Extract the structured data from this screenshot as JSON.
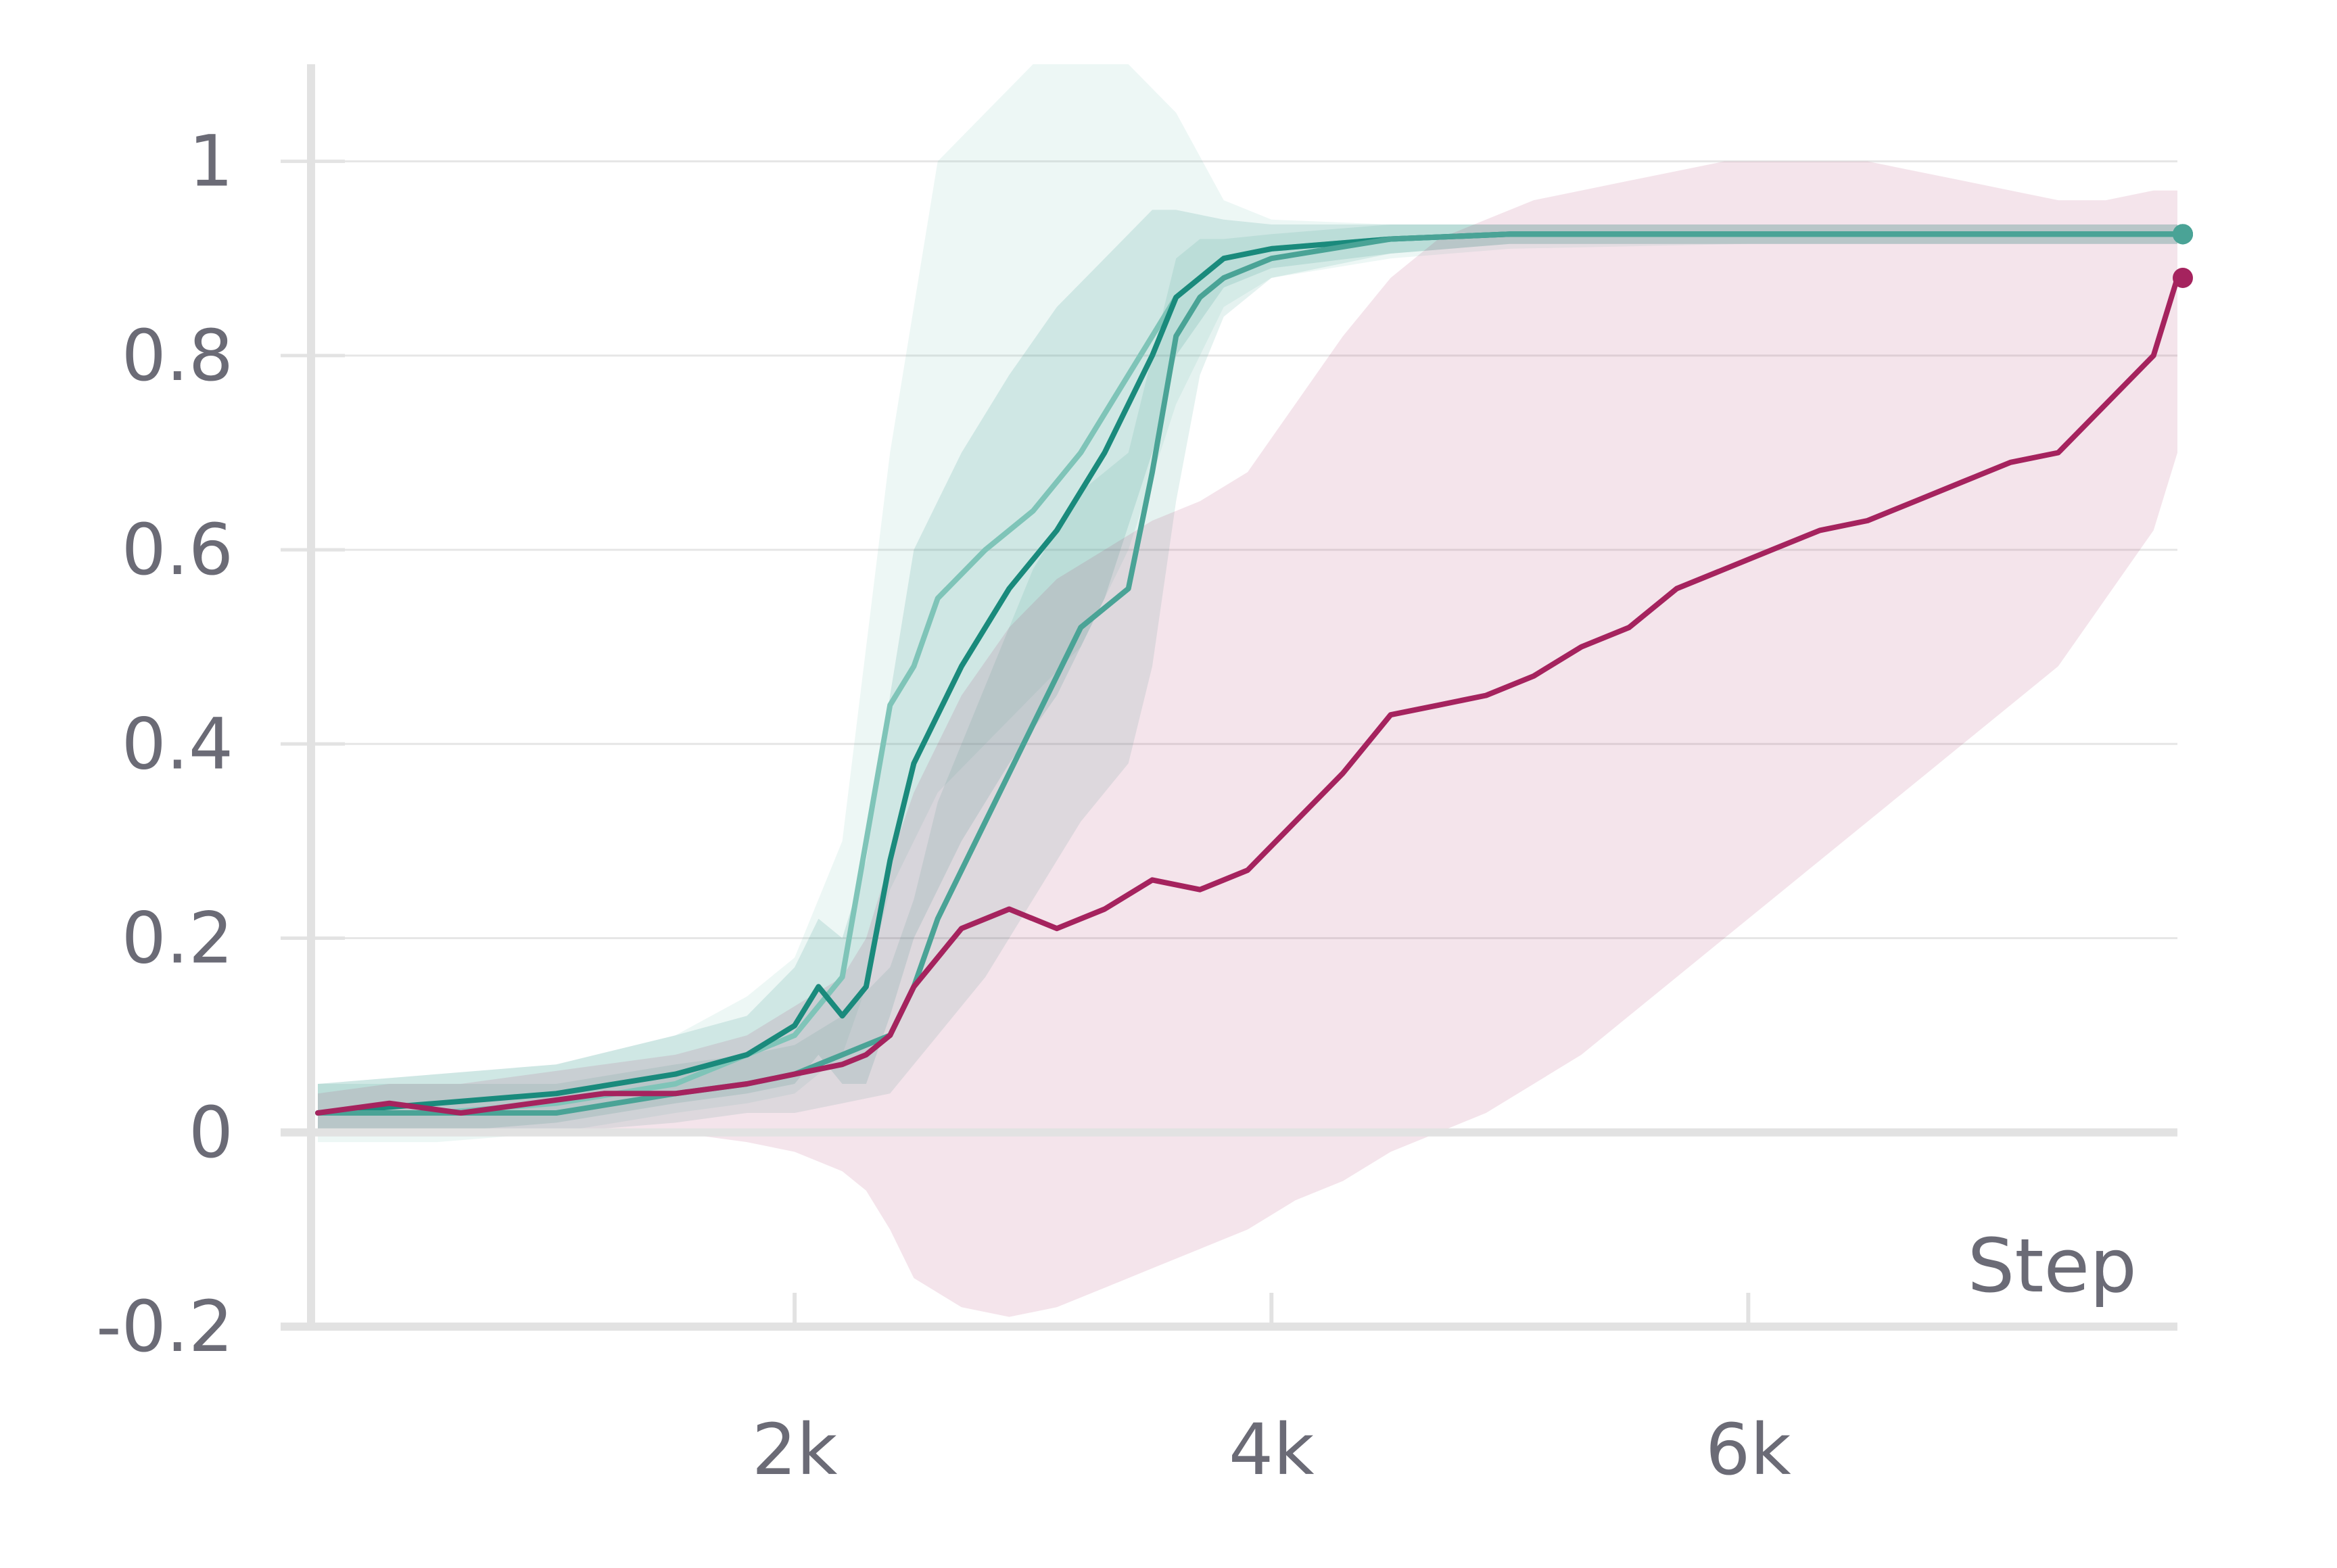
{
  "chart_data": {
    "type": "line",
    "title": "",
    "xlabel": "Step",
    "ylabel": "",
    "xlim": [
      0,
      7800
    ],
    "ylim": [
      -0.2,
      1.1
    ],
    "x_ticks": [
      {
        "value": 2000,
        "label": "2k"
      },
      {
        "value": 4000,
        "label": "4k"
      },
      {
        "value": 6000,
        "label": "6k"
      }
    ],
    "y_ticks": [
      {
        "value": -0.2,
        "label": "-0.2"
      },
      {
        "value": 0,
        "label": "0"
      },
      {
        "value": 0.2,
        "label": "0.2"
      },
      {
        "value": 0.4,
        "label": "0.4"
      },
      {
        "value": 0.6,
        "label": "0.6"
      },
      {
        "value": 0.8,
        "label": "0.8"
      },
      {
        "value": 1,
        "label": "1"
      }
    ],
    "grid": true,
    "legend": "none",
    "series": [
      {
        "color": "#7fc4b8",
        "x": [
          0,
          500,
          1000,
          1500,
          1800,
          2000,
          2200,
          2300,
          2400,
          2500,
          2600,
          2800,
          3000,
          3200,
          3400,
          3600,
          3800,
          4000,
          4500,
          5000,
          6000,
          7000,
          7800
        ],
        "y": [
          0.02,
          0.02,
          0.03,
          0.05,
          0.08,
          0.1,
          0.16,
          0.3,
          0.44,
          0.48,
          0.55,
          0.6,
          0.64,
          0.7,
          0.78,
          0.86,
          0.9,
          0.91,
          0.92,
          0.925,
          0.925,
          0.925,
          0.925
        ],
        "band": {
          "lower": [
            -0.01,
            -0.01,
            0,
            0.02,
            0.03,
            0.04,
            0.08,
            0.15,
            0.25,
            0.3,
            0.35,
            0.4,
            0.45,
            0.5,
            0.6,
            0.75,
            0.85,
            0.88,
            0.9,
            0.91,
            0.915,
            0.915,
            0.915
          ],
          "upper": [
            0.05,
            0.06,
            0.07,
            0.1,
            0.14,
            0.18,
            0.3,
            0.5,
            0.7,
            0.85,
            1.0,
            1.05,
            1.1,
            1.1,
            1.1,
            1.05,
            0.96,
            0.94,
            0.935,
            0.935,
            0.935,
            0.935,
            0.935
          ]
        }
      },
      {
        "color": "#1a8a7c",
        "x": [
          0,
          500,
          1000,
          1500,
          1800,
          2000,
          2100,
          2200,
          2300,
          2400,
          2500,
          2700,
          2900,
          3100,
          3300,
          3500,
          3600,
          3800,
          4000,
          4500,
          5000,
          6000,
          7000,
          7800
        ],
        "y": [
          0.02,
          0.03,
          0.04,
          0.06,
          0.08,
          0.11,
          0.15,
          0.12,
          0.15,
          0.28,
          0.38,
          0.48,
          0.56,
          0.62,
          0.7,
          0.8,
          0.86,
          0.9,
          0.91,
          0.92,
          0.925,
          0.925,
          0.925,
          0.925
        ],
        "band": {
          "lower": [
            0,
            0,
            0.01,
            0.03,
            0.04,
            0.05,
            0.08,
            0.05,
            0.05,
            0.12,
            0.2,
            0.3,
            0.38,
            0.45,
            0.55,
            0.7,
            0.8,
            0.87,
            0.89,
            0.905,
            0.915,
            0.915,
            0.915,
            0.915
          ],
          "upper": [
            0.05,
            0.06,
            0.07,
            0.1,
            0.12,
            0.17,
            0.22,
            0.2,
            0.28,
            0.45,
            0.6,
            0.7,
            0.78,
            0.85,
            0.9,
            0.95,
            0.95,
            0.94,
            0.935,
            0.935,
            0.935,
            0.935,
            0.935,
            0.935
          ]
        }
      },
      {
        "color": "#4aa396",
        "x": [
          0,
          500,
          1000,
          1500,
          1800,
          2000,
          2200,
          2400,
          2500,
          2600,
          2800,
          3000,
          3200,
          3400,
          3500,
          3600,
          3700,
          3800,
          4000,
          4500,
          5000,
          6000,
          7000,
          7800
        ],
        "y": [
          0.02,
          0.02,
          0.02,
          0.04,
          0.05,
          0.06,
          0.08,
          0.1,
          0.15,
          0.22,
          0.32,
          0.42,
          0.52,
          0.56,
          0.68,
          0.82,
          0.86,
          0.88,
          0.9,
          0.92,
          0.925,
          0.925,
          0.925,
          0.925
        ],
        "band": {
          "lower": [
            0,
            0,
            0,
            0.01,
            0.02,
            0.02,
            0.03,
            0.04,
            0.07,
            0.1,
            0.16,
            0.24,
            0.32,
            0.38,
            0.48,
            0.65,
            0.78,
            0.84,
            0.88,
            0.905,
            0.915,
            0.915,
            0.915,
            0.915
          ],
          "upper": [
            0.05,
            0.05,
            0.05,
            0.07,
            0.08,
            0.09,
            0.12,
            0.17,
            0.24,
            0.34,
            0.46,
            0.58,
            0.66,
            0.7,
            0.8,
            0.9,
            0.92,
            0.92,
            0.925,
            0.935,
            0.935,
            0.935,
            0.935,
            0.935
          ]
        }
      },
      {
        "color": "#a5235e",
        "x": [
          0,
          300,
          600,
          900,
          1200,
          1500,
          1800,
          2000,
          2200,
          2300,
          2400,
          2500,
          2700,
          2900,
          3100,
          3300,
          3500,
          3700,
          3900,
          4100,
          4300,
          4500,
          4700,
          4900,
          5100,
          5300,
          5500,
          5700,
          5900,
          6100,
          6300,
          6500,
          6700,
          6900,
          7100,
          7300,
          7500,
          7700,
          7800
        ],
        "y": [
          0.02,
          0.03,
          0.02,
          0.03,
          0.04,
          0.04,
          0.05,
          0.06,
          0.07,
          0.08,
          0.1,
          0.15,
          0.21,
          0.23,
          0.21,
          0.23,
          0.26,
          0.25,
          0.27,
          0.32,
          0.37,
          0.43,
          0.44,
          0.45,
          0.47,
          0.5,
          0.52,
          0.56,
          0.58,
          0.6,
          0.62,
          0.63,
          0.65,
          0.67,
          0.69,
          0.7,
          0.75,
          0.8,
          0.88
        ],
        "band": {
          "lower": [
            0,
            0,
            0,
            0,
            0,
            0,
            -0.01,
            -0.02,
            -0.04,
            -0.06,
            -0.1,
            -0.15,
            -0.18,
            -0.19,
            -0.18,
            -0.16,
            -0.14,
            -0.12,
            -0.1,
            -0.07,
            -0.05,
            -0.02,
            0,
            0.02,
            0.05,
            0.08,
            0.12,
            0.16,
            0.2,
            0.24,
            0.28,
            0.32,
            0.36,
            0.4,
            0.44,
            0.48,
            0.55,
            0.62,
            0.7
          ],
          "upper": [
            0.04,
            0.05,
            0.05,
            0.06,
            0.07,
            0.08,
            0.1,
            0.13,
            0.16,
            0.2,
            0.28,
            0.35,
            0.45,
            0.52,
            0.57,
            0.6,
            0.63,
            0.65,
            0.68,
            0.75,
            0.82,
            0.88,
            0.92,
            0.94,
            0.96,
            0.97,
            0.98,
            0.99,
            1.0,
            1.0,
            1.0,
            1.0,
            0.99,
            0.98,
            0.97,
            0.96,
            0.96,
            0.97,
            0.97
          ]
        }
      }
    ]
  }
}
